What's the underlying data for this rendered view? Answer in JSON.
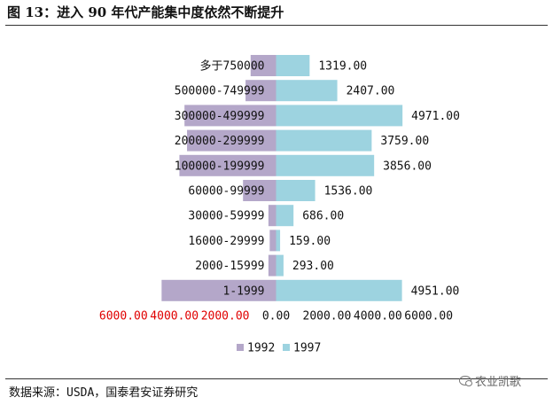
{
  "title": "图 13：进入 90 年代产能集中度依然不断提升",
  "source": "数据来源：USDA，国泰君安证券研究",
  "watermark": "农业凯歌",
  "colors": {
    "series_1992": "#b4a7c9",
    "series_1997": "#9dd3e0",
    "negative_tick": "#e00000",
    "positive_tick": "#111111"
  },
  "chart_data": {
    "type": "bar",
    "orientation": "horizontal-butterfly",
    "categories": [
      "多于750000",
      "500000-749999",
      "300000-499999",
      "200000-299999",
      "100000-199999",
      "60000-99999",
      "30000-59999",
      "16000-29999",
      "2000-15999",
      "1-1999"
    ],
    "series": [
      {
        "name": "1992",
        "values": [
          1000,
          1200,
          3600,
          3500,
          3800,
          1300,
          300,
          250,
          300,
          4500
        ],
        "side": "left",
        "data_labels": false
      },
      {
        "name": "1997",
        "values": [
          1319,
          2407,
          4971,
          3759,
          3856,
          1536,
          686,
          159,
          293,
          4951
        ],
        "side": "right",
        "data_labels": true
      }
    ],
    "value_labels": [
      "1319.00",
      "2407.00",
      "4971.00",
      "3759.00",
      "3856.00",
      "1536.00",
      "686.00",
      "159.00",
      "293.00",
      "4951.00"
    ],
    "xlim": [
      -6000,
      6000
    ],
    "xticks": [
      -6000,
      -4000,
      -2000,
      0,
      2000,
      4000,
      6000
    ],
    "xtick_labels": [
      "6000.00",
      "4000.00",
      "2000.00",
      "0.00",
      "2000.00",
      "4000.00",
      "6000.00"
    ],
    "grid": false,
    "legend": "bottom-center"
  }
}
